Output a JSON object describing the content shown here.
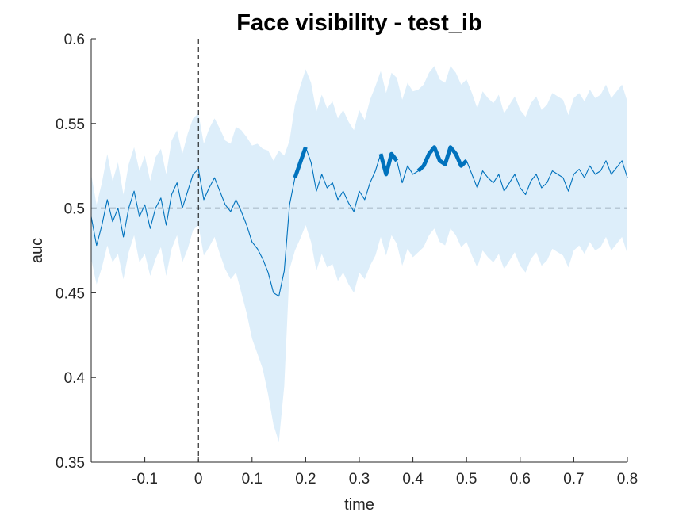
{
  "chart_data": {
    "type": "line",
    "title": "Face visibility - test_ib",
    "xlabel": "time",
    "ylabel": "auc",
    "xlim": [
      -0.2,
      0.8
    ],
    "ylim": [
      0.35,
      0.6
    ],
    "xticks": [
      -0.1,
      0,
      0.1,
      0.2,
      0.3,
      0.4,
      0.5,
      0.6,
      0.7,
      0.8
    ],
    "xtick_labels": [
      "-0.1",
      "0",
      "0.1",
      "0.2",
      "0.3",
      "0.4",
      "0.5",
      "0.6",
      "0.7",
      "0.8"
    ],
    "yticks": [
      0.35,
      0.4,
      0.45,
      0.5,
      0.55,
      0.6
    ],
    "ytick_labels": [
      "0.35",
      "0.4",
      "0.45",
      "0.5",
      "0.55",
      "0.6"
    ],
    "chance_level": 0.5,
    "stimulus_onset": 0,
    "grid": false,
    "colors": {
      "line": "#0072BD",
      "band": "#DDEEFA",
      "reference": "#4a5a6a"
    },
    "x": [
      -0.2,
      -0.19,
      -0.18,
      -0.17,
      -0.16,
      -0.15,
      -0.14,
      -0.13,
      -0.12,
      -0.11,
      -0.1,
      -0.09,
      -0.08,
      -0.07,
      -0.06,
      -0.05,
      -0.04,
      -0.03,
      -0.02,
      -0.01,
      0.0,
      0.01,
      0.02,
      0.03,
      0.04,
      0.05,
      0.06,
      0.07,
      0.08,
      0.09,
      0.1,
      0.11,
      0.12,
      0.13,
      0.14,
      0.15,
      0.16,
      0.17,
      0.18,
      0.19,
      0.2,
      0.21,
      0.22,
      0.23,
      0.24,
      0.25,
      0.26,
      0.27,
      0.28,
      0.29,
      0.3,
      0.31,
      0.32,
      0.33,
      0.34,
      0.35,
      0.36,
      0.37,
      0.38,
      0.39,
      0.4,
      0.41,
      0.42,
      0.43,
      0.44,
      0.45,
      0.46,
      0.47,
      0.48,
      0.49,
      0.5,
      0.51,
      0.52,
      0.53,
      0.54,
      0.55,
      0.56,
      0.57,
      0.58,
      0.59,
      0.6,
      0.61,
      0.62,
      0.63,
      0.64,
      0.65,
      0.66,
      0.67,
      0.68,
      0.69,
      0.7,
      0.71,
      0.72,
      0.73,
      0.74,
      0.75,
      0.76,
      0.77,
      0.78,
      0.79,
      0.8
    ],
    "series": [
      {
        "values": [
          0.495,
          0.478,
          0.49,
          0.505,
          0.492,
          0.5,
          0.483,
          0.5,
          0.51,
          0.495,
          0.502,
          0.488,
          0.5,
          0.506,
          0.49,
          0.508,
          0.515,
          0.5,
          0.51,
          0.52,
          0.523,
          0.505,
          0.512,
          0.518,
          0.51,
          0.502,
          0.498,
          0.505,
          0.498,
          0.49,
          0.48,
          0.476,
          0.47,
          0.462,
          0.45,
          0.448,
          0.463,
          0.502,
          0.518,
          0.527,
          0.536,
          0.527,
          0.51,
          0.52,
          0.512,
          0.515,
          0.505,
          0.51,
          0.503,
          0.498,
          0.51,
          0.505,
          0.515,
          0.522,
          0.532,
          0.52,
          0.532,
          0.528,
          0.515,
          0.525,
          0.52,
          0.522,
          0.525,
          0.532,
          0.536,
          0.528,
          0.526,
          0.536,
          0.532,
          0.525,
          0.528,
          0.52,
          0.512,
          0.522,
          0.518,
          0.515,
          0.52,
          0.51,
          0.515,
          0.52,
          0.512,
          0.508,
          0.516,
          0.52,
          0.512,
          0.515,
          0.522,
          0.52,
          0.518,
          0.51,
          0.52,
          0.523,
          0.518,
          0.525,
          0.52,
          0.522,
          0.528,
          0.52,
          0.524,
          0.528,
          0.518
        ],
        "lower": [
          0.47,
          0.455,
          0.465,
          0.478,
          0.468,
          0.473,
          0.458,
          0.474,
          0.484,
          0.468,
          0.473,
          0.46,
          0.47,
          0.477,
          0.46,
          0.476,
          0.484,
          0.468,
          0.476,
          0.487,
          0.49,
          0.472,
          0.477,
          0.483,
          0.473,
          0.464,
          0.458,
          0.462,
          0.45,
          0.438,
          0.423,
          0.414,
          0.405,
          0.39,
          0.372,
          0.362,
          0.395,
          0.464,
          0.475,
          0.482,
          0.49,
          0.48,
          0.463,
          0.473,
          0.465,
          0.467,
          0.457,
          0.462,
          0.455,
          0.45,
          0.462,
          0.458,
          0.466,
          0.472,
          0.483,
          0.472,
          0.484,
          0.479,
          0.466,
          0.476,
          0.471,
          0.474,
          0.477,
          0.484,
          0.488,
          0.48,
          0.478,
          0.488,
          0.484,
          0.477,
          0.48,
          0.472,
          0.465,
          0.475,
          0.471,
          0.468,
          0.473,
          0.464,
          0.469,
          0.474,
          0.466,
          0.462,
          0.47,
          0.474,
          0.466,
          0.469,
          0.476,
          0.474,
          0.472,
          0.465,
          0.475,
          0.478,
          0.473,
          0.48,
          0.475,
          0.477,
          0.483,
          0.475,
          0.479,
          0.483,
          0.473
        ],
        "upper": [
          0.52,
          0.502,
          0.515,
          0.532,
          0.516,
          0.527,
          0.508,
          0.526,
          0.536,
          0.522,
          0.531,
          0.516,
          0.53,
          0.535,
          0.52,
          0.54,
          0.546,
          0.532,
          0.544,
          0.553,
          0.556,
          0.538,
          0.547,
          0.553,
          0.547,
          0.54,
          0.538,
          0.548,
          0.546,
          0.542,
          0.537,
          0.538,
          0.535,
          0.534,
          0.528,
          0.534,
          0.531,
          0.54,
          0.561,
          0.572,
          0.582,
          0.574,
          0.557,
          0.567,
          0.559,
          0.563,
          0.553,
          0.558,
          0.551,
          0.546,
          0.558,
          0.552,
          0.564,
          0.572,
          0.581,
          0.568,
          0.58,
          0.577,
          0.564,
          0.574,
          0.569,
          0.57,
          0.573,
          0.58,
          0.584,
          0.576,
          0.574,
          0.584,
          0.58,
          0.573,
          0.576,
          0.568,
          0.559,
          0.569,
          0.565,
          0.562,
          0.567,
          0.556,
          0.561,
          0.566,
          0.558,
          0.554,
          0.562,
          0.566,
          0.558,
          0.561,
          0.568,
          0.566,
          0.564,
          0.555,
          0.565,
          0.568,
          0.563,
          0.57,
          0.565,
          0.567,
          0.573,
          0.565,
          0.569,
          0.573,
          0.563
        ]
      }
    ],
    "significant_intervals": [
      [
        0.18,
        0.2
      ],
      [
        0.34,
        0.37
      ],
      [
        0.41,
        0.5
      ]
    ]
  }
}
